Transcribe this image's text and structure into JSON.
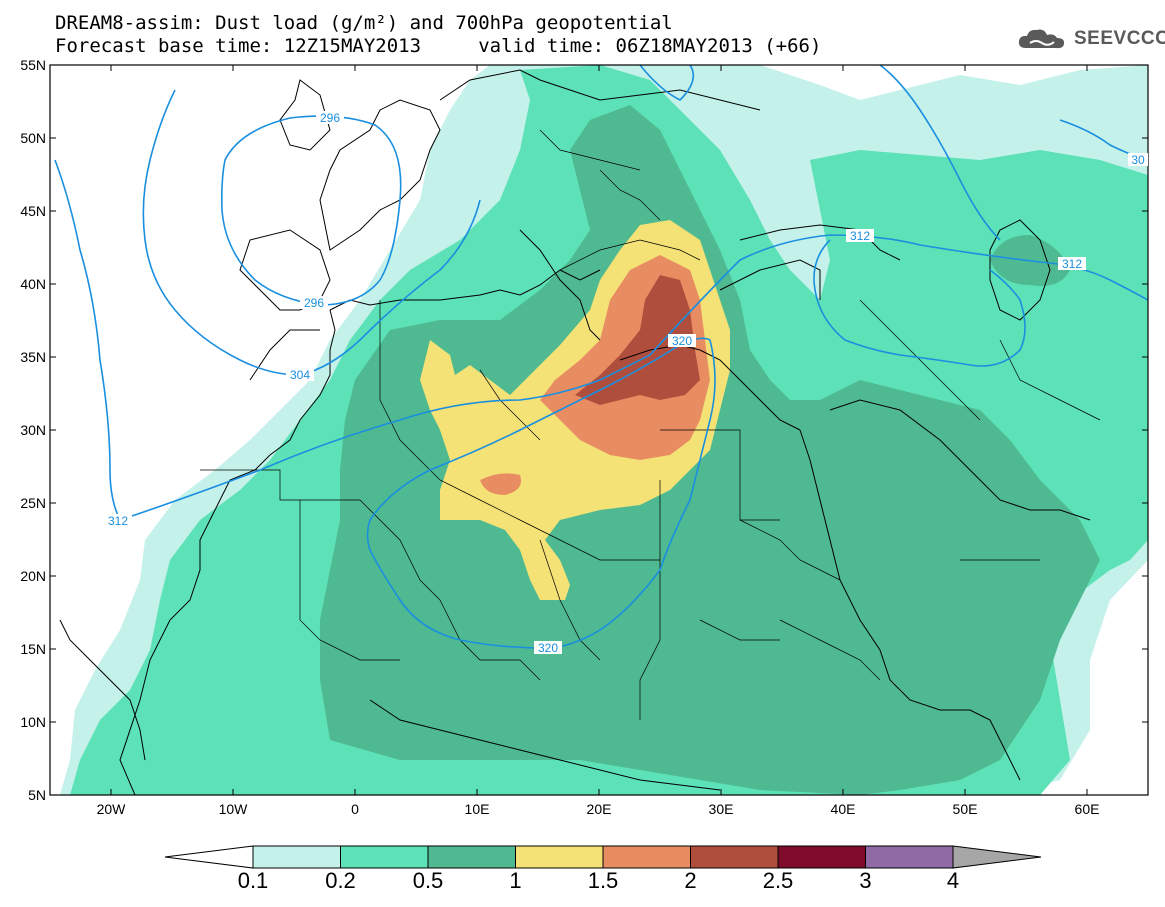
{
  "title": {
    "line1": "DREAM8-assim: Dust load (g/m²) and 700hPa geopotential",
    "line2": "Forecast base time: 12Z15MAY2013     valid time: 06Z18MAY2013 (+66)"
  },
  "logo": {
    "text": "SEEVCCC",
    "icon": "cloud-icon"
  },
  "axes": {
    "lat_labels": [
      "55N",
      "50N",
      "45N",
      "40N",
      "35N",
      "30N",
      "25N",
      "20N",
      "15N",
      "10N",
      "5N"
    ],
    "lon_labels": [
      "20W",
      "10W",
      "0",
      "10E",
      "20E",
      "30E",
      "40E",
      "50E",
      "60E"
    ],
    "lon_range": [
      -25,
      65
    ],
    "lat_range": [
      5,
      55
    ]
  },
  "colorbar": {
    "levels": [
      "0.1",
      "0.2",
      "0.5",
      "1",
      "1.5",
      "2",
      "2.5",
      "3",
      "4"
    ],
    "colors": [
      "#c4f2ea",
      "#5de1b6",
      "#4fb991",
      "#f4e277",
      "#e88d62",
      "#b04e3e",
      "#7e0b2c",
      "#8f6aa4"
    ],
    "under_color": "#ffffff",
    "over_color": "#a6a6a6"
  },
  "contours": [
    {
      "value": "296"
    },
    {
      "value": "296"
    },
    {
      "value": "304"
    },
    {
      "value": "312"
    },
    {
      "value": "312"
    },
    {
      "value": "312"
    },
    {
      "value": "320"
    },
    {
      "value": "320"
    },
    {
      "value": "30"
    }
  ],
  "colors": {
    "contour": "#1a8fe0",
    "frame": "#000000"
  }
}
